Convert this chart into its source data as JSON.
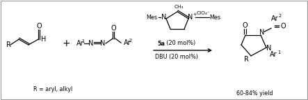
{
  "bg_color": "#ffffff",
  "fig_width": 4.43,
  "fig_height": 1.45,
  "dpi": 100,
  "border_color": "#999999",
  "text_color": "#000000",
  "r_def": "R = aryl, alkyl",
  "yield_text": "60-84% yield",
  "arrow_label_top_bold": "5a",
  "arrow_label_top_rest": " (20 mol%)",
  "arrow_label_bot": "DBU (20 mol%)"
}
